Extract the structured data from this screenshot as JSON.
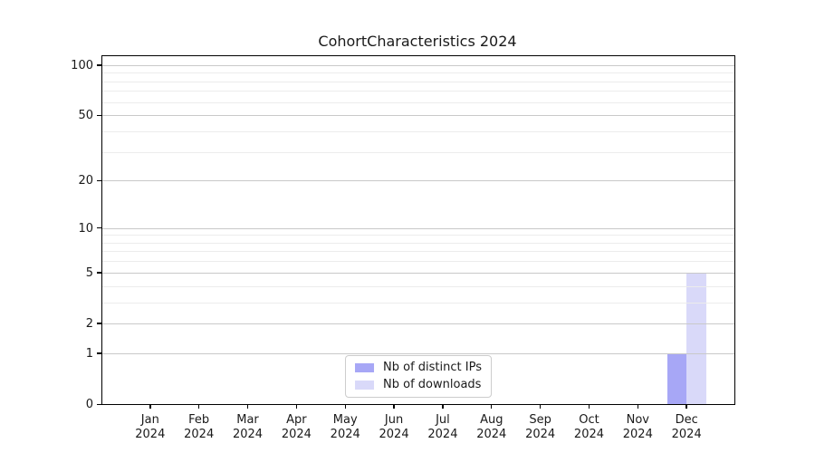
{
  "chart_data": {
    "type": "bar",
    "title": "CohortCharacteristics 2024",
    "categories": [
      [
        "Jan",
        "2024"
      ],
      [
        "Feb",
        "2024"
      ],
      [
        "Mar",
        "2024"
      ],
      [
        "Apr",
        "2024"
      ],
      [
        "May",
        "2024"
      ],
      [
        "Jun",
        "2024"
      ],
      [
        "Jul",
        "2024"
      ],
      [
        "Aug",
        "2024"
      ],
      [
        "Sep",
        "2024"
      ],
      [
        "Oct",
        "2024"
      ],
      [
        "Nov",
        "2024"
      ],
      [
        "Dec",
        "2024"
      ]
    ],
    "series": [
      {
        "name": "Nb of distinct IPs",
        "color": "#a7a7f6",
        "values": [
          0,
          0,
          0,
          0,
          0,
          0,
          0,
          0,
          0,
          0,
          0,
          1
        ]
      },
      {
        "name": "Nb of downloads",
        "color": "#d9d9f9",
        "values": [
          0,
          0,
          0,
          0,
          0,
          0,
          0,
          0,
          0,
          0,
          0,
          5
        ]
      }
    ],
    "xlabel": "",
    "ylabel": "",
    "y_axis": {
      "scale": "symlog-ln(1+x)",
      "tick_values": [
        0,
        1,
        2,
        5,
        10,
        20,
        50,
        100
      ],
      "grid_values": [
        1,
        2,
        3,
        4,
        5,
        6,
        7,
        8,
        9,
        10,
        20,
        30,
        40,
        50,
        60,
        70,
        80,
        90,
        100
      ],
      "ymax": 113,
      "ymin": 0
    },
    "legend": {
      "position": "lower center"
    },
    "grid": true
  },
  "colors": {
    "bar_distinct_ips": "#a7a7f6",
    "bar_downloads": "#d9d9f9",
    "grid_major": "#c9c9c9",
    "grid_minor": "#ececec",
    "axis_line": "#000000",
    "text": "#1a1a1a",
    "legend_border": "#cccccc",
    "legend_background": "#ffffff"
  }
}
